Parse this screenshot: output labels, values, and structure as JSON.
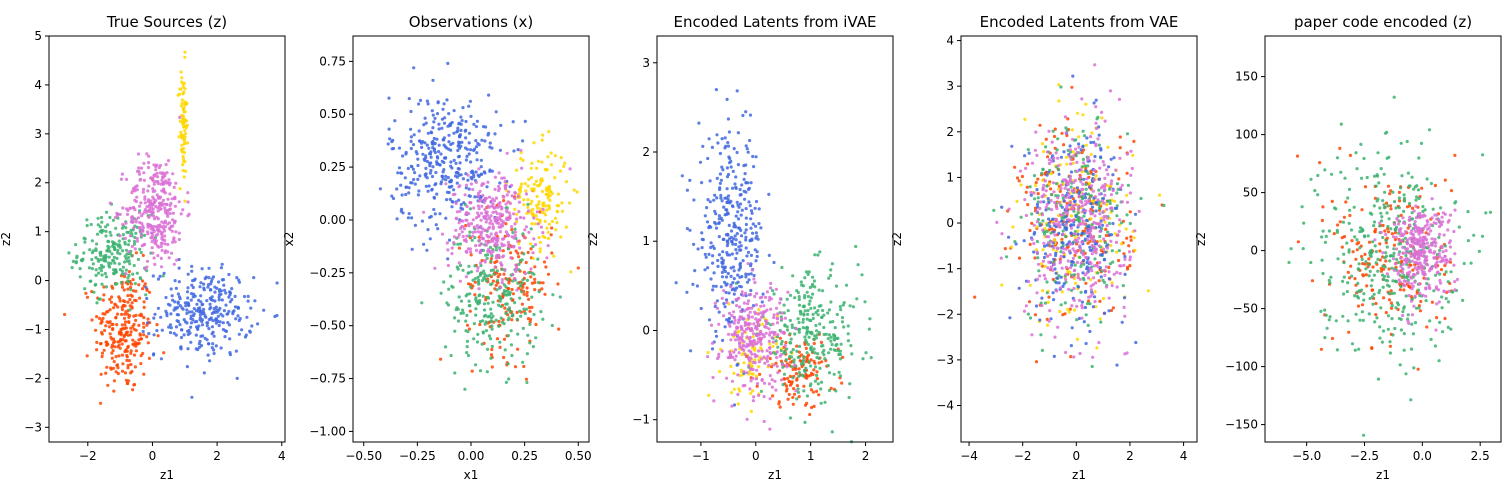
{
  "colors": {
    "red": "#ff4500",
    "green": "#3cb371",
    "blue": "#4169e1",
    "violet": "#da70d6",
    "yellow": "#ffd700"
  },
  "chart_data": [
    {
      "type": "scatter",
      "title": "True Sources (z)",
      "xlabel": "z1",
      "ylabel": "z2",
      "xlim": [
        -3.2,
        4.1
      ],
      "ylim": [
        -3.3,
        5.0
      ],
      "xticks": [
        -2,
        0,
        2,
        4
      ],
      "yticks": [
        -3,
        -2,
        -1,
        0,
        1,
        2,
        3,
        4,
        5
      ],
      "tick_labels_x": [
        "−2",
        "0",
        "2",
        "4"
      ],
      "tick_labels_y": [
        "−3",
        "−2",
        "−1",
        "0",
        "1",
        "2",
        "3",
        "4",
        "5"
      ],
      "clusters": [
        {
          "color": "red",
          "cx": -0.9,
          "cy": -1.0,
          "sx": 0.45,
          "sy": 0.65,
          "n": 260
        },
        {
          "color": "green",
          "cx": -1.2,
          "cy": 0.55,
          "sx": 0.55,
          "sy": 0.4,
          "n": 220
        },
        {
          "color": "blue",
          "cx": 1.6,
          "cy": -0.65,
          "sx": 0.75,
          "sy": 0.45,
          "n": 300
        },
        {
          "color": "yellow",
          "cx": 0.95,
          "cy": 3.2,
          "sx": 0.06,
          "sy": 0.6,
          "n": 80
        },
        {
          "color": "violet",
          "cx": 0.1,
          "cy": 1.45,
          "sx": 0.45,
          "sy": 0.55,
          "n": 320
        }
      ]
    },
    {
      "type": "scatter",
      "title": "Observations (x)",
      "xlabel": "x1",
      "ylabel": "x2",
      "xlim": [
        -0.55,
        0.55
      ],
      "ylim": [
        -1.05,
        0.87
      ],
      "xticks": [
        -0.5,
        -0.25,
        0.0,
        0.25,
        0.5
      ],
      "yticks": [
        -1.0,
        -0.75,
        -0.5,
        -0.25,
        0.0,
        0.25,
        0.5,
        0.75
      ],
      "tick_labels_x": [
        "−0.50",
        "−0.25",
        "0.00",
        "0.25",
        "0.50"
      ],
      "tick_labels_y": [
        "−1.00",
        "−0.75",
        "−0.50",
        "−0.25",
        "0.00",
        "0.25",
        "0.50",
        "0.75"
      ],
      "clusters": [
        {
          "color": "red",
          "cx": 0.18,
          "cy": -0.3,
          "sx": 0.1,
          "sy": 0.17,
          "n": 180
        },
        {
          "color": "yellow",
          "cx": 0.32,
          "cy": 0.1,
          "sx": 0.07,
          "sy": 0.12,
          "n": 150
        },
        {
          "color": "green",
          "cx": 0.1,
          "cy": -0.35,
          "sx": 0.11,
          "sy": 0.17,
          "n": 260
        },
        {
          "color": "blue",
          "cx": -0.12,
          "cy": 0.28,
          "sx": 0.13,
          "sy": 0.16,
          "n": 360
        },
        {
          "color": "violet",
          "cx": 0.1,
          "cy": -0.02,
          "sx": 0.1,
          "sy": 0.12,
          "n": 320
        }
      ]
    },
    {
      "type": "scatter",
      "title": "Encoded Latents from iVAE",
      "xlabel": "z1",
      "ylabel": "z2",
      "xlim": [
        -1.8,
        2.5
      ],
      "ylim": [
        -1.25,
        3.3
      ],
      "xticks": [
        -1,
        0,
        1,
        2
      ],
      "yticks": [
        -1,
        0,
        1,
        2,
        3
      ],
      "tick_labels_x": [
        "−1",
        "0",
        "1",
        "2"
      ],
      "tick_labels_y": [
        "−1",
        "0",
        "1",
        "2",
        "3"
      ],
      "clusters": [
        {
          "color": "yellow",
          "cx": -0.1,
          "cy": -0.3,
          "sx": 0.25,
          "sy": 0.25,
          "n": 80
        },
        {
          "color": "red",
          "cx": 0.8,
          "cy": -0.45,
          "sx": 0.35,
          "sy": 0.2,
          "n": 120
        },
        {
          "color": "green",
          "cx": 1.0,
          "cy": -0.05,
          "sx": 0.45,
          "sy": 0.35,
          "n": 280
        },
        {
          "color": "blue",
          "cx": -0.45,
          "cy": 1.05,
          "sx": 0.3,
          "sy": 0.55,
          "n": 340
        },
        {
          "color": "violet",
          "cx": -0.05,
          "cy": -0.05,
          "sx": 0.3,
          "sy": 0.3,
          "n": 300
        }
      ]
    },
    {
      "type": "scatter",
      "title": "Encoded Latents from VAE",
      "xlabel": "z1",
      "ylabel": "z2",
      "xlim": [
        -4.3,
        4.5
      ],
      "ylim": [
        -4.8,
        4.1
      ],
      "xticks": [
        -4,
        -2,
        0,
        2,
        4
      ],
      "yticks": [
        -4,
        -3,
        -2,
        -1,
        0,
        1,
        2,
        3,
        4
      ],
      "tick_labels_x": [
        "−4",
        "−2",
        "0",
        "2",
        "4"
      ],
      "tick_labels_y": [
        "−4",
        "−3",
        "−2",
        "−1",
        "0",
        "1",
        "2",
        "3",
        "4"
      ],
      "clusters": [
        {
          "color": "red",
          "cx": 0,
          "cy": 0,
          "sx": 1.05,
          "sy": 1.1,
          "n": 200
        },
        {
          "color": "yellow",
          "cx": 0,
          "cy": 0,
          "sx": 1.05,
          "sy": 1.1,
          "n": 160
        },
        {
          "color": "green",
          "cx": 0,
          "cy": 0,
          "sx": 1.0,
          "sy": 1.1,
          "n": 220
        },
        {
          "color": "blue",
          "cx": 0,
          "cy": 0,
          "sx": 0.95,
          "sy": 1.05,
          "n": 240
        },
        {
          "color": "violet",
          "cx": 0,
          "cy": 0,
          "sx": 0.95,
          "sy": 1.05,
          "n": 380
        }
      ]
    },
    {
      "type": "scatter",
      "title": "paper code encoded (z)",
      "xlabel": "z1",
      "ylabel": "z2",
      "xlim": [
        -6.8,
        3.4
      ],
      "ylim": [
        -165,
        185
      ],
      "xticks": [
        -5.0,
        -2.5,
        0.0,
        2.5
      ],
      "yticks": [
        -150,
        -100,
        -50,
        0,
        50,
        100,
        150
      ],
      "tick_labels_x": [
        "−5.0",
        "−2.5",
        "0.0",
        "2.5"
      ],
      "tick_labels_y": [
        "−150",
        "−100",
        "−50",
        "0",
        "50",
        "100",
        "150"
      ],
      "clusters": [
        {
          "color": "red",
          "cx": -1.2,
          "cy": -5,
          "sx": 1.3,
          "sy": 40,
          "n": 200
        },
        {
          "color": "green",
          "cx": -1.5,
          "cy": 0,
          "sx": 1.5,
          "sy": 45,
          "n": 380
        },
        {
          "color": "violet",
          "cx": -0.1,
          "cy": 0,
          "sx": 0.7,
          "sy": 20,
          "n": 320
        }
      ]
    }
  ]
}
